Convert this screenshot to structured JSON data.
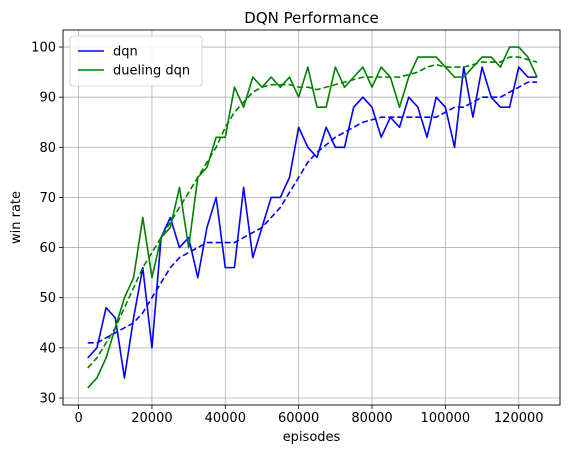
{
  "chart_data": {
    "type": "line",
    "title": "DQN Performance",
    "xlabel": "episodes",
    "ylabel": "win rate",
    "xlim": [
      -4250,
      131250
    ],
    "ylim": [
      28.6,
      103.4
    ],
    "xticks": [
      0,
      20000,
      40000,
      60000,
      80000,
      100000,
      120000
    ],
    "yticks": [
      30,
      40,
      50,
      60,
      70,
      80,
      90,
      100
    ],
    "xtick_labels": [
      "0",
      "20000",
      "40000",
      "60000",
      "80000",
      "100000",
      "120000"
    ],
    "ytick_labels": [
      "30",
      "40",
      "50",
      "60",
      "70",
      "80",
      "90",
      "100"
    ],
    "grid": true,
    "legend_position": "top-left",
    "x": [
      2500,
      5000,
      7500,
      10000,
      12500,
      15000,
      17500,
      20000,
      22500,
      25000,
      27500,
      30000,
      32500,
      35000,
      37500,
      40000,
      42500,
      45000,
      47500,
      50000,
      52500,
      55000,
      57500,
      60000,
      62500,
      65000,
      67500,
      70000,
      72500,
      75000,
      77500,
      80000,
      82500,
      85000,
      87500,
      90000,
      92500,
      95000,
      97500,
      100000,
      102500,
      105000,
      107500,
      110000,
      112500,
      115000,
      117500,
      120000,
      122500,
      125000
    ],
    "series": [
      {
        "name": "dqn",
        "color": "#0000ff",
        "style": "solid",
        "values": [
          38,
          40,
          48,
          46,
          34,
          46,
          56,
          40,
          62,
          66,
          60,
          62,
          54,
          64,
          70,
          56,
          56,
          72,
          58,
          64,
          70,
          70,
          74,
          84,
          80,
          78,
          84,
          80,
          80,
          88,
          90,
          88,
          82,
          86,
          84,
          90,
          88,
          82,
          90,
          88,
          80,
          96,
          86,
          96,
          90,
          88,
          88,
          96,
          94,
          94
        ]
      },
      {
        "name": "dueling dqn",
        "color": "#008000",
        "style": "solid",
        "values": [
          32,
          34,
          38,
          44,
          50,
          54,
          66,
          54,
          62,
          64,
          72,
          60,
          74,
          76,
          82,
          82,
          92,
          88,
          94,
          92,
          94,
          92,
          94,
          90,
          96,
          88,
          88,
          96,
          92,
          94,
          96,
          92,
          96,
          94,
          88,
          94,
          98,
          98,
          98,
          96,
          94,
          94,
          96,
          98,
          98,
          96,
          100,
          100,
          98,
          94
        ]
      },
      {
        "name": "",
        "color": "#0000ff",
        "style": "dashed",
        "values": [
          41,
          41,
          42,
          43,
          44,
          45,
          47,
          50,
          53,
          56,
          58,
          59,
          60,
          61,
          61,
          61,
          61,
          62,
          63,
          64,
          66,
          68,
          71,
          74,
          77,
          79,
          80.5,
          82,
          83,
          84,
          85,
          85.5,
          86,
          86,
          86,
          86,
          86,
          86,
          86,
          87,
          88,
          88,
          89,
          90,
          90,
          90,
          91,
          92,
          93,
          93
        ]
      },
      {
        "name": "",
        "color": "#008000",
        "style": "dashed",
        "values": [
          36,
          38,
          41,
          44,
          48,
          52,
          56,
          59,
          62,
          65,
          68,
          71,
          74,
          77,
          80,
          84,
          87,
          89,
          91,
          92,
          92.5,
          92.5,
          92.5,
          92,
          92,
          91.5,
          92,
          92.5,
          93,
          93.5,
          94,
          94,
          94,
          94,
          94,
          94.5,
          95,
          96,
          96.5,
          96,
          96,
          96,
          96.5,
          97,
          97,
          97,
          98,
          98,
          97.5,
          97
        ]
      }
    ]
  }
}
